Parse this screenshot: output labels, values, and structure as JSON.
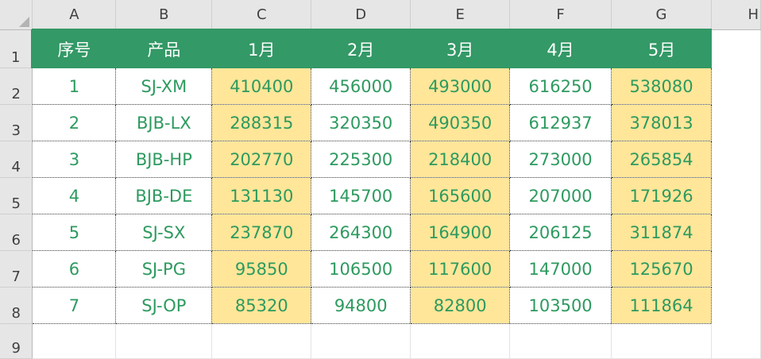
{
  "sheet": {
    "column_headers": [
      "A",
      "B",
      "C",
      "D",
      "E",
      "F",
      "G",
      "H"
    ],
    "row_numbers": [
      "1",
      "2",
      "3",
      "4",
      "5",
      "6",
      "7",
      "8",
      "9"
    ],
    "table_header": [
      "序号",
      "产品",
      "1月",
      "2月",
      "3月",
      "4月",
      "5月"
    ],
    "rows": [
      [
        "1",
        "SJ-XM",
        "410400",
        "456000",
        "493000",
        "616250",
        "538080"
      ],
      [
        "2",
        "BJB-LX",
        "288315",
        "320350",
        "490350",
        "612937",
        "378013"
      ],
      [
        "3",
        "BJB-HP",
        "202770",
        "225300",
        "218400",
        "273000",
        "265854"
      ],
      [
        "4",
        "BJB-DE",
        "131130",
        "145700",
        "165600",
        "207000",
        "171926"
      ],
      [
        "5",
        "SJ-SX",
        "237870",
        "264300",
        "164900",
        "206125",
        "311874"
      ],
      [
        "6",
        "SJ-PG",
        "95850",
        "106500",
        "117600",
        "147000",
        "125670"
      ],
      [
        "7",
        "SJ-OP",
        "85320",
        "94800",
        "82800",
        "103500",
        "111864"
      ]
    ],
    "colors": {
      "header_fill": "#339966",
      "highlight_fill": "#ffe699",
      "cell_text": "#2d9a5f"
    }
  }
}
